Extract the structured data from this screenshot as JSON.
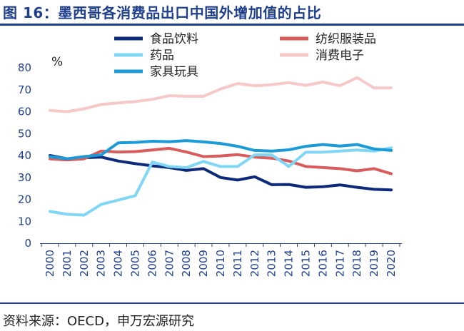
{
  "header": {
    "title": "图 16：墨西哥各消费品出口中国外增加值的占比"
  },
  "footer": {
    "source": "资料来源：OECD，申万宏源研究"
  },
  "chart_data": {
    "type": "line",
    "title": "图 16：墨西哥各消费品出口中国外增加值的占比",
    "unit_label": "%",
    "xlabel": "",
    "ylabel": "",
    "ylim": [
      0,
      80
    ],
    "yticks": [
      0,
      10,
      20,
      30,
      40,
      50,
      60,
      70,
      80
    ],
    "x": [
      "2000",
      "2001",
      "2002",
      "2003",
      "2004",
      "2005",
      "2006",
      "2007",
      "2008",
      "2009",
      "2010",
      "2011",
      "2012",
      "2013",
      "2014",
      "2015",
      "2016",
      "2017",
      "2018",
      "2019",
      "2020"
    ],
    "grid": false,
    "legend_position": "top",
    "series": [
      {
        "name": "食品饮料",
        "color": "#0d2a7a",
        "values": [
          40,
          38.5,
          39,
          39.3,
          37.5,
          36.3,
          35.3,
          34.5,
          33.2,
          34,
          30,
          28.8,
          30.3,
          26.7,
          26.8,
          25.5,
          25.8,
          26.6,
          25.5,
          24.6,
          24.3
        ]
      },
      {
        "name": "纺织服装品",
        "color": "#d95b5b",
        "values": [
          38.5,
          38,
          38.5,
          42,
          41.6,
          41.8,
          42.5,
          43.3,
          41.6,
          39.5,
          39.8,
          40.4,
          39.3,
          38.8,
          37.5,
          35,
          34.5,
          34,
          33,
          34,
          31.7
        ]
      },
      {
        "name": "药品",
        "color": "#7fd6f5",
        "values": [
          14.5,
          13.2,
          12.8,
          17.7,
          19.7,
          21.7,
          37,
          35,
          34.5,
          37.3,
          35,
          35,
          40.3,
          40.3,
          35,
          41.5,
          41.5,
          42,
          42.5,
          42,
          43.5
        ]
      },
      {
        "name": "消费电子",
        "color": "#f7c8c8",
        "values": [
          60.6,
          60,
          61.3,
          63.3,
          64,
          64.6,
          65.6,
          67.3,
          67,
          67,
          70.3,
          72.8,
          71.8,
          72.3,
          73.2,
          72,
          73.5,
          71.8,
          75.5,
          70.8,
          70.8
        ]
      },
      {
        "name": "家具玩具",
        "color": "#1a9bd7",
        "values": [
          39.5,
          38.5,
          39.5,
          40.3,
          45.8,
          46,
          46.5,
          46.3,
          46.8,
          46.2,
          45.5,
          44.2,
          42.3,
          42,
          42.6,
          44.2,
          45,
          44.3,
          45,
          43,
          42.3
        ]
      }
    ]
  }
}
